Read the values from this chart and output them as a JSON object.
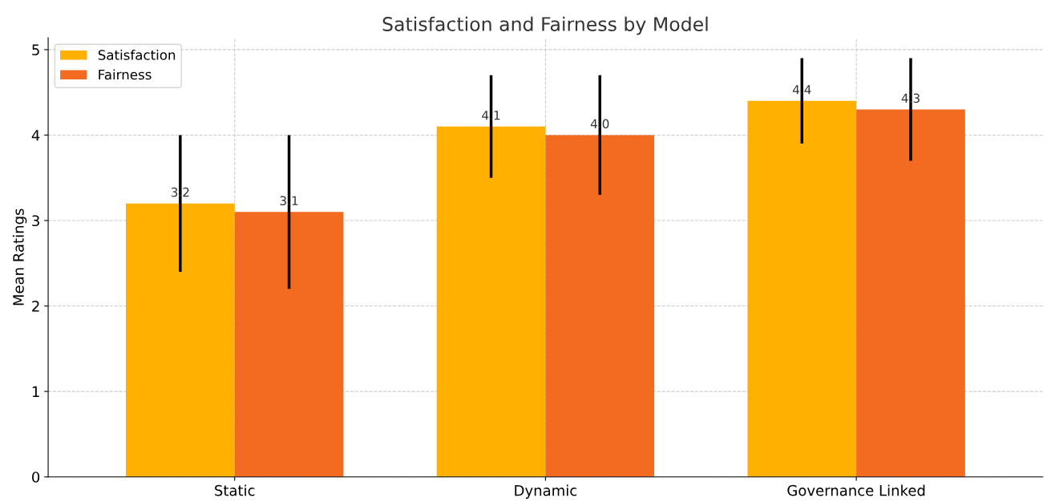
{
  "chart_data": {
    "type": "bar",
    "title": "Satisfaction and Fairness by Model",
    "ylabel": "Mean Ratings",
    "categories": [
      "Static",
      "Dynamic",
      "Governance Linked"
    ],
    "series": [
      {
        "name": "Satisfaction",
        "color": "#ffb000",
        "values": [
          3.2,
          4.1,
          4.4
        ],
        "value_labels": [
          "3.2",
          "4.1",
          "4.4"
        ],
        "errors": [
          0.8,
          0.6,
          0.5
        ]
      },
      {
        "name": "Fairness",
        "color": "#f26b21",
        "values": [
          3.1,
          4.0,
          4.3
        ],
        "value_labels": [
          "3.1",
          "4.0",
          "4.3"
        ],
        "errors": [
          0.9,
          0.7,
          0.6
        ]
      }
    ],
    "ylim": [
      0,
      5.14
    ],
    "yticks": [
      0,
      1,
      2,
      3,
      4,
      5
    ],
    "grid": true,
    "legend": "top left"
  }
}
